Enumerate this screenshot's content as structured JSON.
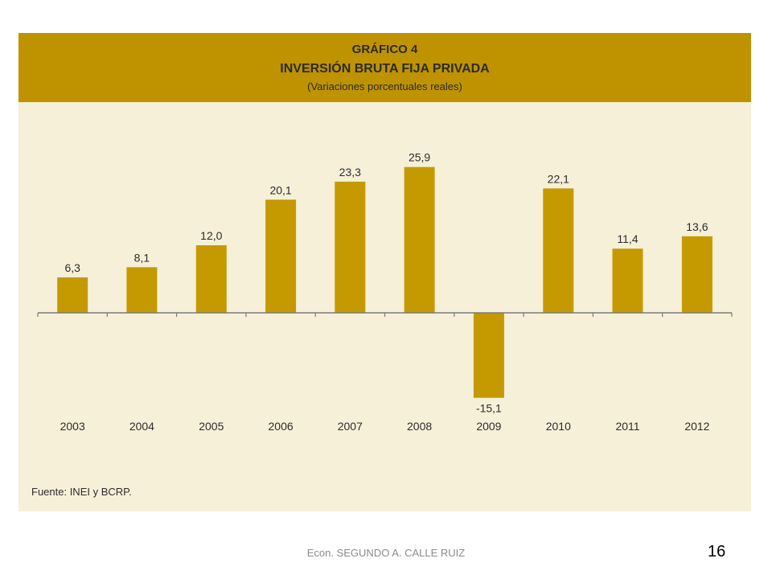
{
  "header": {
    "kicker": "GRÁFICO 4",
    "title": "INVERSIÓN BRUTA FIJA PRIVADA",
    "subtitle": "(Variaciones porcentuales reales)"
  },
  "source": "Fuente: INEI y BCRP.",
  "footer": {
    "author": "Econ. SEGUNDO A. CALLE RUIZ",
    "page": "16"
  },
  "colors": {
    "bar": "#c49a00",
    "header": "#bf9300",
    "panel": "#f6f0d9",
    "axis": "#7a7a7a"
  },
  "chart_data": {
    "type": "bar",
    "title": "INVERSIÓN BRUTA FIJA PRIVADA",
    "subtitle": "(Variaciones porcentuales reales)",
    "categories": [
      "2003",
      "2004",
      "2005",
      "2006",
      "2007",
      "2008",
      "2009",
      "2010",
      "2011",
      "2012"
    ],
    "values": [
      6.3,
      8.1,
      12.0,
      20.1,
      23.3,
      25.9,
      -15.1,
      22.1,
      11.4,
      13.6
    ],
    "value_labels": [
      "6,3",
      "8,1",
      "12,0",
      "20,1",
      "23,3",
      "25,9",
      "-15,1",
      "22,1",
      "11,4",
      "13,6"
    ],
    "ylim": [
      -15.1,
      25.9
    ],
    "grid": false,
    "legend": "none"
  }
}
